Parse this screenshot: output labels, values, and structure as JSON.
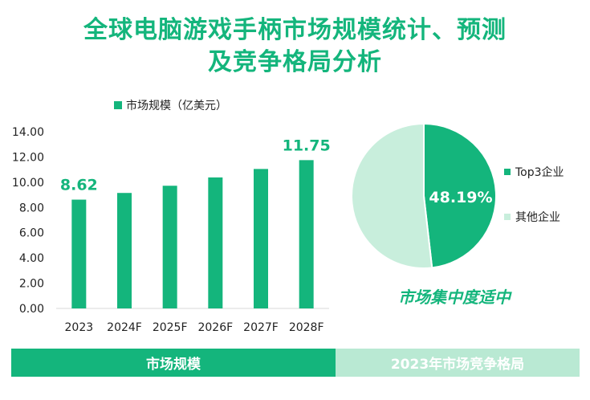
{
  "title": {
    "line1": "全球电脑游戏手柄市场规模统计、预测",
    "line2": "及竞争格局分析"
  },
  "colors": {
    "accent": "#14b57c",
    "light": "#c8eedc",
    "band_light": "#b9e9d3"
  },
  "chart_data": [
    {
      "type": "bar",
      "title": "",
      "legend": "市场规模（亿美元）",
      "categories": [
        "2023",
        "2024F",
        "2025F",
        "2026F",
        "2027F",
        "2028F"
      ],
      "values": [
        8.62,
        9.15,
        9.72,
        10.38,
        11.05,
        11.75
      ],
      "ylim": [
        0,
        14
      ],
      "yticks": [
        "0.00",
        "2.00",
        "4.00",
        "6.00",
        "8.00",
        "10.00",
        "12.00",
        "14.00"
      ],
      "data_labels": [
        {
          "category": "2023",
          "text": "8.62"
        },
        {
          "category": "2028F",
          "text": "11.75"
        }
      ]
    },
    {
      "type": "pie",
      "slices": [
        {
          "label": "Top3企业",
          "value": 48.19,
          "display": "48.19%"
        },
        {
          "label": "其他企业",
          "value": 51.81
        }
      ]
    }
  ],
  "pie_note": "市场集中度适中",
  "bottom": {
    "left": "市场规模",
    "right": "2023年市场竞争格局"
  }
}
